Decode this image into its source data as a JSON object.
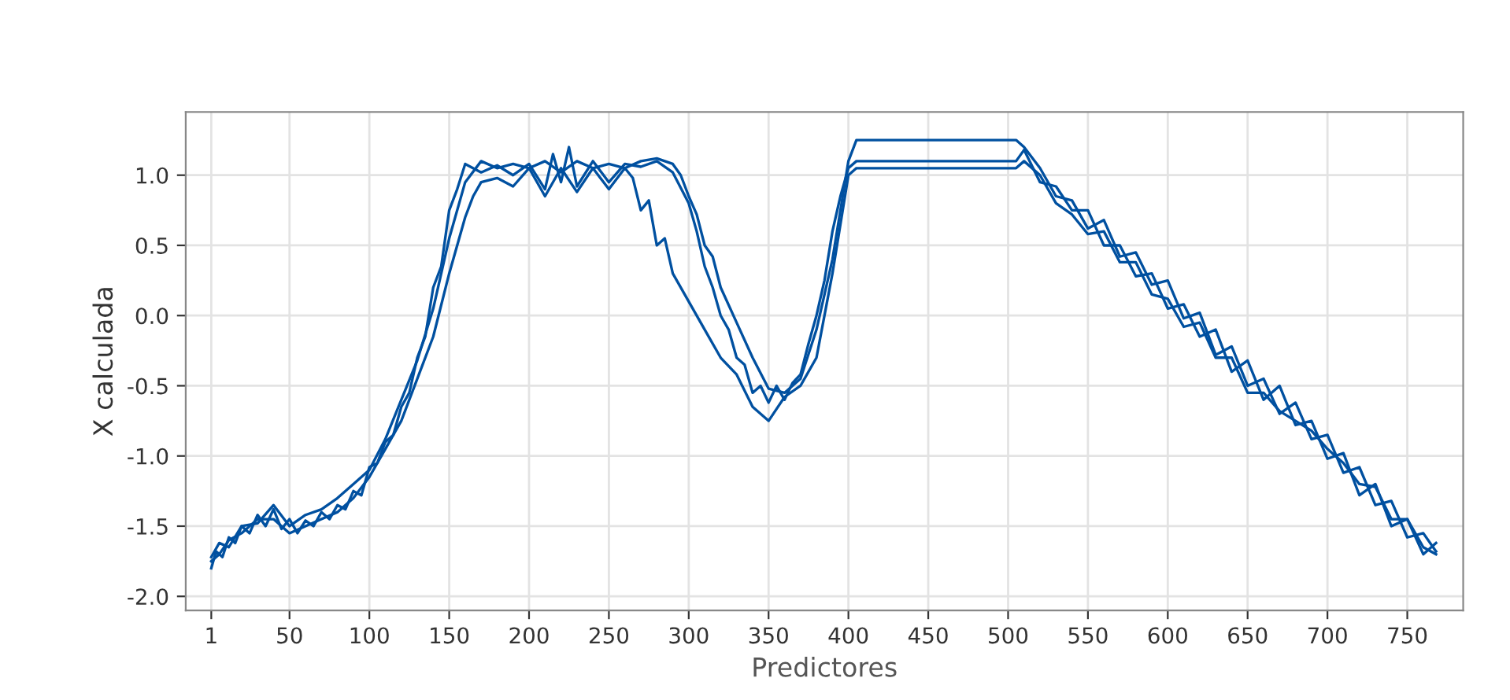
{
  "chart_data": {
    "type": "line",
    "xlabel": "Predictores",
    "ylabel": "X calculada",
    "xlim": [
      -15,
      785
    ],
    "ylim": [
      -2.1,
      1.45
    ],
    "xticks": [
      1,
      50,
      100,
      150,
      200,
      250,
      300,
      350,
      400,
      450,
      500,
      550,
      600,
      650,
      700,
      750
    ],
    "yticks": [
      {
        "value": -2.0,
        "label": "-2.0"
      },
      {
        "value": -1.5,
        "label": "-1.5"
      },
      {
        "value": -1.0,
        "label": "-1.0"
      },
      {
        "value": -0.5,
        "label": "-0.5"
      },
      {
        "value": 0.0,
        "label": "0.0"
      },
      {
        "value": 0.5,
        "label": "0.5"
      },
      {
        "value": 1.0,
        "label": "1.0"
      }
    ],
    "grid": true,
    "legend": false,
    "marker": "none",
    "line_style": "solid",
    "series": [
      {
        "color": "#0050a0",
        "x": [
          1,
          4,
          8,
          12,
          16,
          20,
          25,
          30,
          35,
          40,
          45,
          50,
          55,
          60,
          65,
          70,
          75,
          80,
          85,
          90,
          95,
          100,
          105,
          110,
          115,
          120,
          125,
          130,
          135,
          140,
          145,
          150,
          155,
          160,
          170,
          180,
          190,
          200,
          210,
          215,
          220,
          225,
          230,
          240,
          250,
          260,
          270,
          280,
          290,
          300,
          305,
          310,
          315,
          320,
          325,
          330,
          335,
          340,
          345,
          350,
          355,
          360,
          365,
          370,
          375,
          380,
          385,
          390,
          395,
          400,
          405,
          505,
          510,
          520,
          530,
          540,
          550,
          560,
          570,
          580,
          590,
          600,
          610,
          620,
          630,
          640,
          650,
          660,
          670,
          680,
          690,
          700,
          710,
          720,
          730,
          740,
          750,
          760,
          768
        ],
        "values": [
          -1.8,
          -1.68,
          -1.72,
          -1.58,
          -1.62,
          -1.5,
          -1.55,
          -1.42,
          -1.5,
          -1.38,
          -1.52,
          -1.45,
          -1.55,
          -1.46,
          -1.5,
          -1.4,
          -1.45,
          -1.35,
          -1.38,
          -1.25,
          -1.28,
          -1.08,
          -1.05,
          -0.9,
          -0.85,
          -0.65,
          -0.55,
          -0.3,
          -0.15,
          0.2,
          0.35,
          0.75,
          0.9,
          1.08,
          1.02,
          1.07,
          1.0,
          1.08,
          0.9,
          1.15,
          0.95,
          1.2,
          0.92,
          1.1,
          0.95,
          1.08,
          1.06,
          1.1,
          1.02,
          0.8,
          0.6,
          0.35,
          0.2,
          0.0,
          -0.1,
          -0.3,
          -0.35,
          -0.55,
          -0.5,
          -0.62,
          -0.5,
          -0.6,
          -0.48,
          -0.42,
          -0.2,
          0.0,
          0.25,
          0.6,
          0.85,
          1.05,
          1.1,
          1.1,
          1.18,
          0.95,
          0.92,
          0.75,
          0.75,
          0.5,
          0.5,
          0.28,
          0.3,
          0.05,
          0.08,
          -0.15,
          -0.1,
          -0.4,
          -0.32,
          -0.6,
          -0.5,
          -0.78,
          -0.75,
          -1.02,
          -0.98,
          -1.28,
          -1.2,
          -1.5,
          -1.45,
          -1.7,
          -1.62
        ]
      },
      {
        "color": "#0050a0",
        "x": [
          1,
          6,
          12,
          20,
          30,
          40,
          50,
          60,
          70,
          80,
          90,
          100,
          110,
          120,
          130,
          140,
          150,
          160,
          170,
          180,
          190,
          200,
          210,
          220,
          230,
          240,
          250,
          260,
          270,
          280,
          290,
          295,
          300,
          305,
          310,
          315,
          320,
          330,
          340,
          350,
          360,
          370,
          380,
          390,
          400,
          405,
          505,
          510,
          520,
          530,
          540,
          550,
          560,
          570,
          580,
          590,
          600,
          610,
          620,
          630,
          640,
          650,
          660,
          670,
          680,
          690,
          700,
          710,
          720,
          730,
          740,
          750,
          760,
          768
        ],
        "values": [
          -1.72,
          -1.62,
          -1.65,
          -1.5,
          -1.48,
          -1.35,
          -1.5,
          -1.42,
          -1.38,
          -1.3,
          -1.2,
          -1.1,
          -0.88,
          -0.6,
          -0.32,
          0.05,
          0.55,
          0.95,
          1.1,
          1.05,
          1.08,
          1.05,
          1.1,
          1.02,
          1.1,
          1.05,
          1.08,
          1.05,
          1.1,
          1.12,
          1.08,
          1.0,
          0.85,
          0.72,
          0.5,
          0.42,
          0.2,
          -0.05,
          -0.3,
          -0.52,
          -0.55,
          -0.45,
          -0.1,
          0.4,
          1.1,
          1.25,
          1.25,
          1.2,
          1.05,
          0.85,
          0.82,
          0.62,
          0.68,
          0.42,
          0.45,
          0.22,
          0.25,
          -0.02,
          0.02,
          -0.28,
          -0.22,
          -0.5,
          -0.45,
          -0.7,
          -0.62,
          -0.88,
          -0.85,
          -1.12,
          -1.08,
          -1.35,
          -1.32,
          -1.58,
          -1.55,
          -1.68
        ]
      },
      {
        "color": "#0050a0",
        "x": [
          1,
          6,
          12,
          20,
          30,
          40,
          50,
          60,
          70,
          80,
          90,
          100,
          110,
          120,
          130,
          140,
          150,
          160,
          165,
          170,
          180,
          190,
          200,
          210,
          220,
          230,
          240,
          250,
          260,
          265,
          270,
          275,
          280,
          285,
          290,
          300,
          310,
          320,
          330,
          340,
          350,
          360,
          370,
          380,
          390,
          400,
          405,
          505,
          510,
          520,
          530,
          540,
          550,
          560,
          570,
          580,
          590,
          600,
          610,
          620,
          630,
          640,
          650,
          660,
          670,
          680,
          690,
          700,
          710,
          720,
          730,
          740,
          750,
          760,
          768
        ],
        "values": [
          -1.75,
          -1.7,
          -1.6,
          -1.55,
          -1.45,
          -1.45,
          -1.55,
          -1.5,
          -1.45,
          -1.4,
          -1.3,
          -1.15,
          -0.95,
          -0.75,
          -0.45,
          -0.15,
          0.3,
          0.7,
          0.85,
          0.95,
          0.98,
          0.92,
          1.05,
          0.85,
          1.05,
          0.88,
          1.05,
          0.9,
          1.05,
          0.98,
          0.75,
          0.82,
          0.5,
          0.55,
          0.3,
          0.1,
          -0.1,
          -0.3,
          -0.42,
          -0.65,
          -0.75,
          -0.58,
          -0.5,
          -0.3,
          0.3,
          1.0,
          1.05,
          1.05,
          1.1,
          1.0,
          0.8,
          0.72,
          0.58,
          0.6,
          0.38,
          0.38,
          0.15,
          0.12,
          -0.08,
          -0.05,
          -0.3,
          -0.3,
          -0.55,
          -0.55,
          -0.68,
          -0.75,
          -0.82,
          -0.95,
          -1.05,
          -1.2,
          -1.22,
          -1.45,
          -1.45,
          -1.65,
          -1.7
        ]
      }
    ]
  }
}
